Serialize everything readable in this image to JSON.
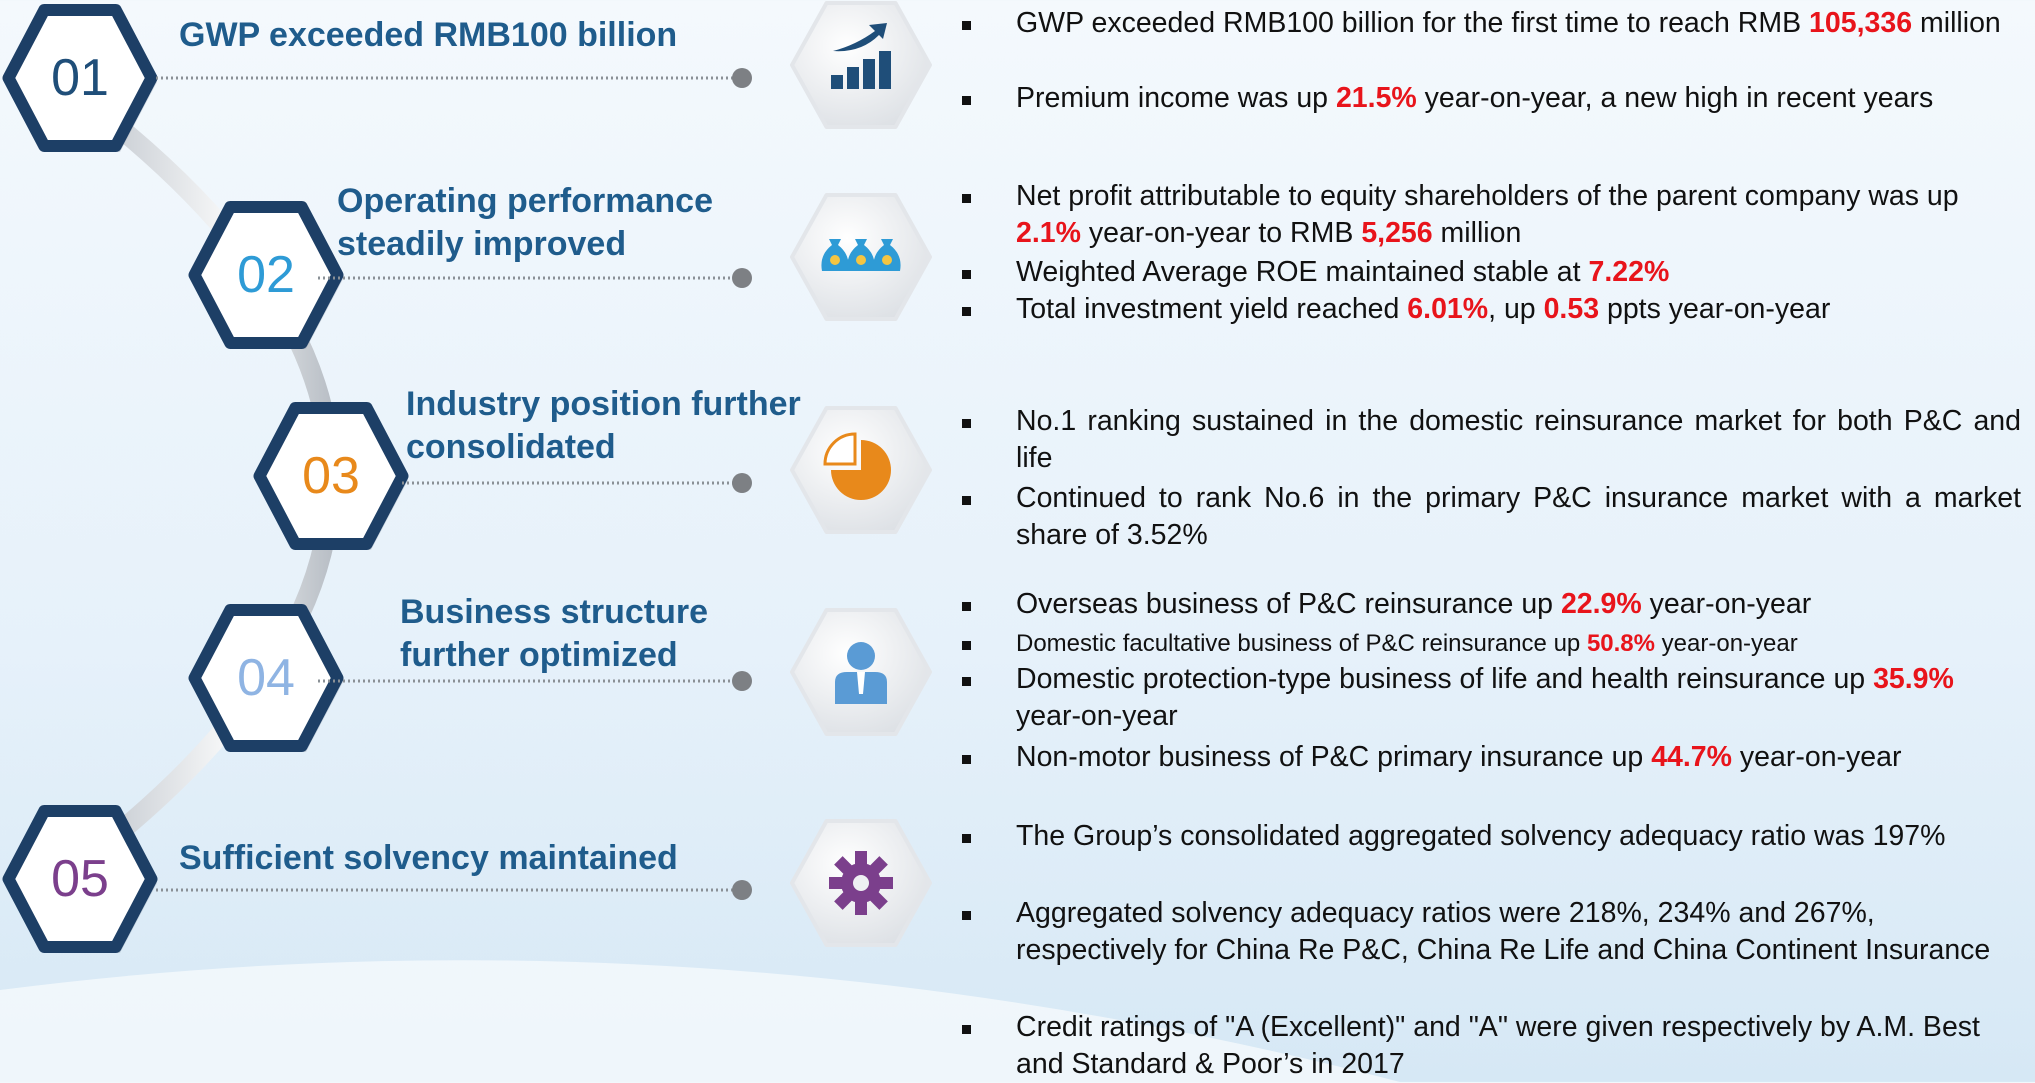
{
  "items": [
    {
      "number": "01",
      "title": "GWP exceeded RMB100 billion",
      "bullets": [
        [
          "GWP exceeded RMB100 billion for the first time to reach RMB ",
          {
            "text": "105,336",
            "color": "#e8141b"
          },
          " million"
        ],
        [
          "Premium income was up  ",
          {
            "text": "21.5%",
            "color": "#e8141b"
          },
          " year-on-year, a new high in recent years"
        ]
      ]
    },
    {
      "number": "02",
      "title": "Operating performance steadily improved",
      "bullets": [
        [
          "Net profit attributable to equity shareholders of the parent company was up ",
          {
            "text": "2.1%",
            "color": "#e8141b"
          },
          " year-on-year to RMB ",
          {
            "text": "5,256",
            "color": "#e8141b"
          },
          " million"
        ],
        [
          "Weighted Average ROE maintained stable at ",
          {
            "text": "7.22%",
            "color": "#e8141b"
          }
        ],
        [
          "Total investment yield reached ",
          {
            "text": "6.01%",
            "color": "#e8141b"
          },
          ", up ",
          {
            "text": "0.53",
            "color": "#e8141b"
          },
          " ppts year-on-year"
        ]
      ]
    },
    {
      "number": "03",
      "title": "Industry position further consolidated",
      "bullets": [
        [
          "No.1 ranking sustained in the domestic reinsurance market for both P&C and life"
        ],
        [
          "Continued to rank No.6 in the primary P&C insurance market with a market share of 3.52%"
        ]
      ]
    },
    {
      "number": "04",
      "title": "Business structure further optimized",
      "bullets": [
        [
          "Overseas business of P&C reinsurance up ",
          {
            "text": "22.9%",
            "color": "#e8141b"
          },
          " year-on-year"
        ],
        [
          "Domestic facultative business of P&C reinsurance up ",
          {
            "text": "50.8%",
            "color": "#e8141b"
          },
          " year-on-year"
        ],
        [
          "Domestic protection-type business of life and health reinsurance up ",
          {
            "text": "35.9%",
            "color": "#e8141b"
          },
          " year-on-year"
        ],
        [
          "Non-motor business of P&C primary insurance up ",
          {
            "text": "44.7%",
            "color": "#e8141b"
          },
          " year-on-year"
        ]
      ]
    },
    {
      "number": "05",
      "title": "Sufficient solvency maintained",
      "bullets": [
        [
          "The Group’s consolidated aggregated solvency adequacy ratio was 197%"
        ],
        [
          "Aggregated solvency adequacy ratios were 218%, 234% and 267%, respectively for China Re P&C, China Re Life and China Continent Insurance"
        ],
        [
          "Credit ratings of \"A (Excellent)\" and \"A\" were given respectively by A.M. Best and Standard & Poor’s in 2017"
        ]
      ]
    }
  ]
}
